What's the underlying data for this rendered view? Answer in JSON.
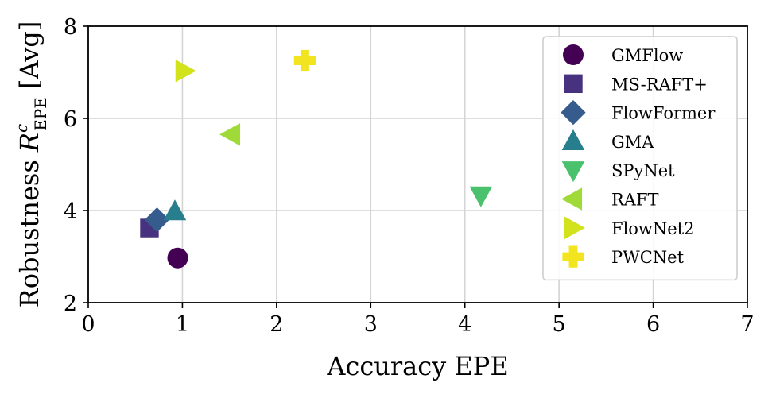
{
  "chart_data": {
    "type": "scatter",
    "xlabel": "Accuracy EPE",
    "ylabel": {
      "prefix": "Robustness ",
      "symbol": "R",
      "superscript": "c",
      "subscript": "EPE",
      "suffix": " [Avg]"
    },
    "xlim": [
      0,
      7
    ],
    "ylim": [
      2,
      8
    ],
    "xticks": [
      0,
      1,
      2,
      3,
      4,
      5,
      6,
      7
    ],
    "yticks": [
      2,
      4,
      6,
      8
    ],
    "grid": true,
    "legend_position": "upper-right",
    "series": [
      {
        "name": "GMFlow",
        "marker": "circle",
        "color": "#440154",
        "x": 0.95,
        "y": 2.97
      },
      {
        "name": "MS-RAFT+",
        "marker": "square",
        "color": "#46327e",
        "x": 0.65,
        "y": 3.62
      },
      {
        "name": "FlowFormer",
        "marker": "diamond",
        "color": "#365c8d",
        "x": 0.73,
        "y": 3.8
      },
      {
        "name": "GMA",
        "marker": "triangle-up",
        "color": "#277f8e",
        "x": 0.92,
        "y": 3.98
      },
      {
        "name": "SPyNet",
        "marker": "triangle-down",
        "color": "#4ac16d",
        "x": 4.17,
        "y": 4.33
      },
      {
        "name": "RAFT",
        "marker": "triangle-left",
        "color": "#a0da39",
        "x": 1.52,
        "y": 5.65
      },
      {
        "name": "FlowNet2",
        "marker": "triangle-right",
        "color": "#d2e21b",
        "x": 1.02,
        "y": 7.03
      },
      {
        "name": "PWCNet",
        "marker": "plus",
        "color": "#f2e51f",
        "x": 2.3,
        "y": 7.25
      }
    ]
  }
}
